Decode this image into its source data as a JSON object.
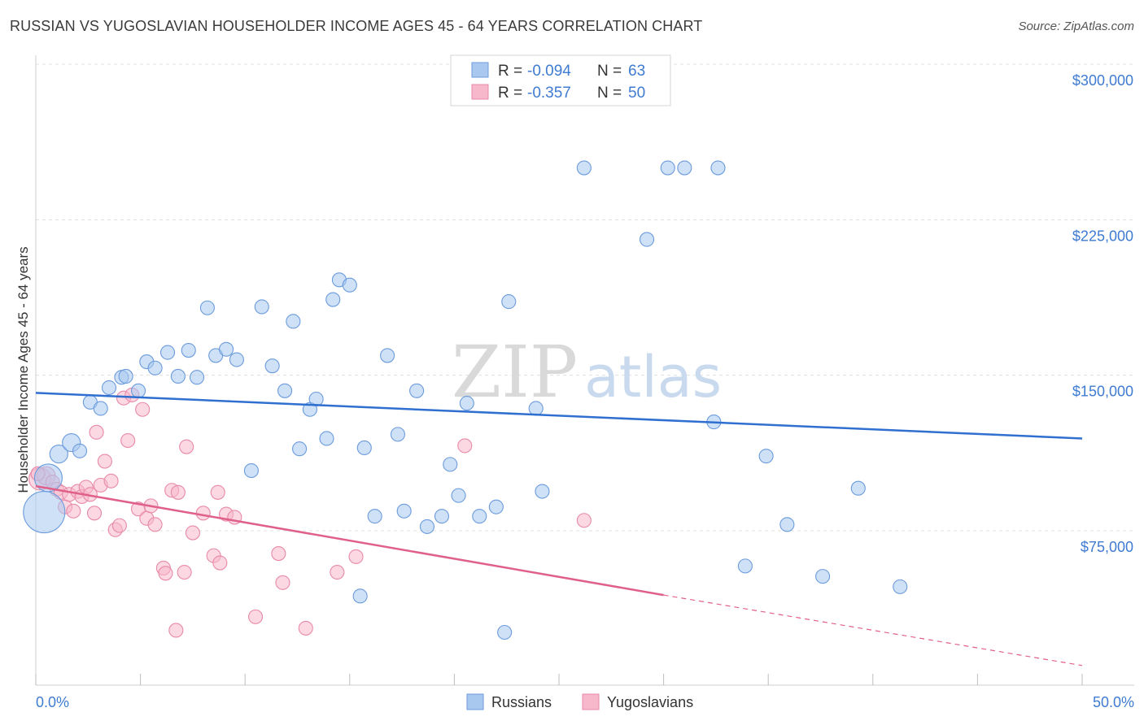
{
  "title": "RUSSIAN VS YUGOSLAVIAN HOUSEHOLDER INCOME AGES 45 - 64 YEARS CORRELATION CHART",
  "source": "Source: ZipAtlas.com",
  "watermark": {
    "part1": "ZIP",
    "part2": "atlas"
  },
  "legend": {
    "rows": [
      {
        "r_label": "R =",
        "r_value": "-0.094",
        "n_label": "N =",
        "n_value": "63"
      },
      {
        "r_label": "R =",
        "r_value": "-0.357",
        "n_label": "N =",
        "n_value": "50"
      }
    ]
  },
  "bottom_legend": [
    "Russians",
    "Yugoslavians"
  ],
  "colors": {
    "russians_fill": "#a8c8f0",
    "russians_stroke": "#6b9bdc",
    "russians_line": "#2f6fcf",
    "yugoslavians_fill": "#f7b8cb",
    "yugoslavians_stroke": "#e889a8",
    "yugoslavians_line": "#e0608c",
    "tick_text": "#3f7bd1",
    "grid": "#e0e0e0"
  },
  "chart_data": {
    "type": "scatter",
    "title": "RUSSIAN VS YUGOSLAVIAN HOUSEHOLDER INCOME AGES 45 - 64 YEARS CORRELATION CHART",
    "xlabel": "",
    "ylabel": "Householder Income Ages 45 - 64 years",
    "xlim": [
      0,
      50
    ],
    "ylim": [
      0,
      315000
    ],
    "x_tick_labels": [
      "0.0%",
      "50.0%"
    ],
    "y_ticks": [
      75000,
      150000,
      225000,
      300000
    ],
    "y_tick_labels": [
      "$75,000",
      "$150,000",
      "$225,000",
      "$300,000"
    ],
    "grid": true,
    "legend_position": "top-center",
    "series": [
      {
        "name": "Russians",
        "R": -0.094,
        "N": 63,
        "trend": {
          "x0": 0,
          "y0": 141500,
          "x1": 50,
          "y1": 119500
        },
        "points": [
          [
            0.4,
            84000,
            3
          ],
          [
            0.6,
            100500,
            2
          ],
          [
            1.1,
            112000,
            1.3
          ],
          [
            1.7,
            117500,
            1.3
          ],
          [
            2.1,
            113500,
            1
          ],
          [
            2.6,
            137000,
            1
          ],
          [
            3.1,
            134000,
            1
          ],
          [
            3.5,
            144000,
            1
          ],
          [
            4.1,
            149000,
            1
          ],
          [
            4.3,
            149500,
            1
          ],
          [
            4.9,
            142500,
            1
          ],
          [
            5.3,
            156500,
            1
          ],
          [
            5.7,
            153500,
            1
          ],
          [
            6.3,
            161000,
            1
          ],
          [
            6.8,
            149500,
            1
          ],
          [
            7.3,
            162000,
            1
          ],
          [
            7.7,
            149000,
            1
          ],
          [
            8.2,
            182500,
            1
          ],
          [
            8.6,
            159500,
            1
          ],
          [
            9.1,
            162500,
            1
          ],
          [
            9.6,
            157500,
            1
          ],
          [
            10.3,
            104000,
            1
          ],
          [
            10.8,
            183000,
            1
          ],
          [
            11.3,
            154500,
            1
          ],
          [
            11.9,
            142500,
            1
          ],
          [
            12.3,
            176000,
            1
          ],
          [
            12.6,
            114500,
            1
          ],
          [
            13.1,
            133500,
            1
          ],
          [
            13.4,
            138500,
            1
          ],
          [
            13.9,
            119500,
            1
          ],
          [
            14.2,
            186500,
            1
          ],
          [
            14.5,
            196000,
            1
          ],
          [
            15.0,
            193500,
            1
          ],
          [
            15.7,
            115000,
            1
          ],
          [
            16.2,
            82000,
            1
          ],
          [
            16.8,
            159500,
            1
          ],
          [
            17.3,
            121500,
            1
          ],
          [
            17.6,
            84500,
            1
          ],
          [
            18.2,
            142500,
            1
          ],
          [
            18.7,
            77000,
            1
          ],
          [
            19.4,
            82000,
            1
          ],
          [
            19.8,
            107000,
            1
          ],
          [
            20.2,
            92000,
            1
          ],
          [
            20.6,
            136500,
            1
          ],
          [
            21.2,
            82000,
            1
          ],
          [
            22.0,
            86500,
            1
          ],
          [
            22.4,
            26000,
            1
          ],
          [
            22.6,
            185500,
            1
          ],
          [
            23.9,
            134000,
            1
          ],
          [
            24.2,
            94000,
            1
          ],
          [
            26.2,
            250000,
            1
          ],
          [
            29.2,
            215500,
            1
          ],
          [
            30.2,
            250000,
            1
          ],
          [
            31.0,
            250000,
            1
          ],
          [
            32.4,
            127500,
            1
          ],
          [
            32.6,
            250000,
            1
          ],
          [
            33.9,
            58000,
            1
          ],
          [
            34.9,
            111000,
            1
          ],
          [
            35.9,
            78000,
            1
          ],
          [
            37.6,
            53000,
            1
          ],
          [
            39.3,
            95500,
            1
          ],
          [
            41.3,
            48000,
            1
          ],
          [
            15.5,
            43500,
            1
          ]
        ]
      },
      {
        "name": "Yugoslavians",
        "R": -0.357,
        "N": 50,
        "trend": {
          "x0": 0,
          "y0": 96500,
          "x1": 30,
          "y1": 44000,
          "dash_x1": 50,
          "dash_y1": 10000
        },
        "points": [
          [
            0.2,
            100000,
            1.6
          ],
          [
            0.5,
            101500,
            1.3
          ],
          [
            0.8,
            98500,
            1
          ],
          [
            1.0,
            95000,
            1
          ],
          [
            1.2,
            93500,
            1
          ],
          [
            1.4,
            86500,
            1
          ],
          [
            1.6,
            92500,
            1
          ],
          [
            1.8,
            84500,
            1
          ],
          [
            2.0,
            94000,
            1
          ],
          [
            2.2,
            91500,
            1
          ],
          [
            2.4,
            96000,
            1
          ],
          [
            2.6,
            92500,
            1
          ],
          [
            2.8,
            83500,
            1
          ],
          [
            2.9,
            122500,
            1
          ],
          [
            3.1,
            97000,
            1
          ],
          [
            3.3,
            108500,
            1
          ],
          [
            3.6,
            99000,
            1
          ],
          [
            3.8,
            75500,
            1
          ],
          [
            4.0,
            77500,
            1
          ],
          [
            4.2,
            139000,
            1
          ],
          [
            4.4,
            118500,
            1
          ],
          [
            4.6,
            140500,
            1
          ],
          [
            4.9,
            85500,
            1
          ],
          [
            5.1,
            133500,
            1
          ],
          [
            5.3,
            81000,
            1
          ],
          [
            5.5,
            87000,
            1
          ],
          [
            5.7,
            78000,
            1
          ],
          [
            6.1,
            57000,
            1
          ],
          [
            6.2,
            54500,
            1
          ],
          [
            6.5,
            94500,
            1
          ],
          [
            6.8,
            93500,
            1
          ],
          [
            6.7,
            27000,
            1
          ],
          [
            7.1,
            55000,
            1
          ],
          [
            7.2,
            115500,
            1
          ],
          [
            7.5,
            74000,
            1
          ],
          [
            8.0,
            83500,
            1
          ],
          [
            8.5,
            63000,
            1
          ],
          [
            8.7,
            93500,
            1
          ],
          [
            8.8,
            59500,
            1
          ],
          [
            9.1,
            83000,
            1
          ],
          [
            9.5,
            81500,
            1
          ],
          [
            10.5,
            33500,
            1
          ],
          [
            11.6,
            64000,
            1
          ],
          [
            11.8,
            50000,
            1
          ],
          [
            12.9,
            28000,
            1
          ],
          [
            14.4,
            55000,
            1
          ],
          [
            15.3,
            62500,
            1
          ],
          [
            20.5,
            116000,
            1
          ],
          [
            26.2,
            80000,
            1
          ],
          [
            0.1,
            102500,
            1
          ]
        ]
      }
    ]
  }
}
